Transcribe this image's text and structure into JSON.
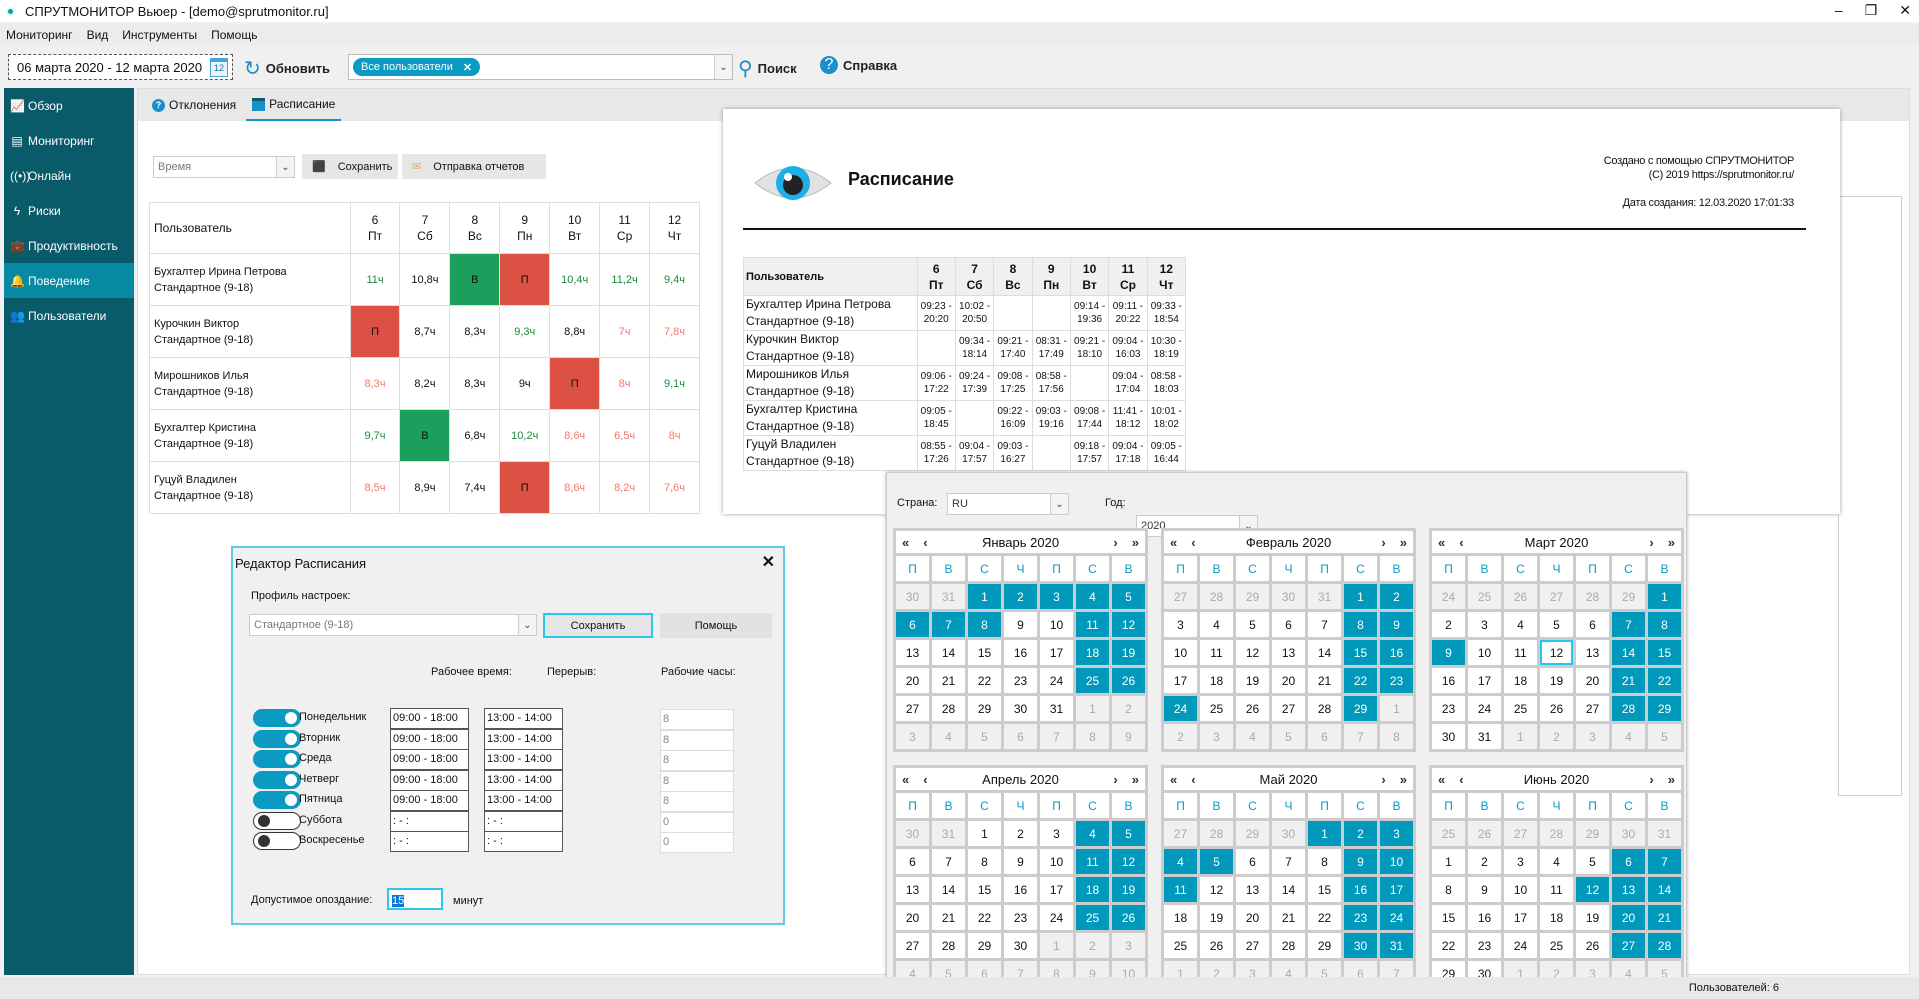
{
  "window": {
    "title": "СПРУТМОНИТОР Вьюер - [demo@sprutmonitor.ru]",
    "minimize": "–",
    "maximize": "❐",
    "close": "✕"
  },
  "menu": [
    "Мониторинг",
    "Вид",
    "Инструменты",
    "Помощь"
  ],
  "toolbar": {
    "date_range": "06 марта 2020 - 12 марта 2020",
    "calendar_icon_day": "12",
    "refresh": "Обновить",
    "user_chip": "Все пользователи",
    "chip_remove": "✕",
    "search": "Поиск",
    "help": "Справка"
  },
  "sidebar": [
    {
      "label": "Обзор",
      "icon": "📈"
    },
    {
      "label": "Мониторинг",
      "icon": "▤"
    },
    {
      "label": "Онлайн",
      "icon": "((•))"
    },
    {
      "label": "Риски",
      "icon": "ϟ"
    },
    {
      "label": "Продуктивность",
      "icon": "💼"
    },
    {
      "label": "Поведение",
      "icon": "🔔",
      "active": true
    },
    {
      "label": "Пользователи",
      "icon": "👥"
    }
  ],
  "tabs": [
    {
      "label": "Отклонения"
    },
    {
      "label": "Расписание",
      "active": true
    }
  ],
  "controls": {
    "mode_select": "Время",
    "save": "Сохранить",
    "send_reports": "Отправка отчетов"
  },
  "schedule_table": {
    "user_header": "Пользователь",
    "days": [
      {
        "d": "6",
        "w": "Пт"
      },
      {
        "d": "7",
        "w": "Сб"
      },
      {
        "d": "8",
        "w": "Вс"
      },
      {
        "d": "9",
        "w": "Пн"
      },
      {
        "d": "10",
        "w": "Вт"
      },
      {
        "d": "11",
        "w": "Ср"
      },
      {
        "d": "12",
        "w": "Чт"
      }
    ],
    "rows": [
      {
        "name": "Бухгалтер Ирина Петрова",
        "profile": "Стандартное (9-18)",
        "cells": [
          [
            "11ч",
            "g"
          ],
          [
            "10,8ч",
            "n"
          ],
          [
            "В",
            "W"
          ],
          [
            "П",
            "A"
          ],
          [
            "10,4ч",
            "g"
          ],
          [
            "11,2ч",
            "g"
          ],
          [
            "9,4ч",
            "g"
          ]
        ]
      },
      {
        "name": "Курочкин Виктор",
        "profile": "Стандартное (9-18)",
        "cells": [
          [
            "П",
            "A"
          ],
          [
            "8,7ч",
            "n"
          ],
          [
            "8,3ч",
            "n"
          ],
          [
            "9,3ч",
            "g"
          ],
          [
            "8,8ч",
            "n"
          ],
          [
            "7ч",
            "s"
          ],
          [
            "7,8ч",
            "s"
          ]
        ]
      },
      {
        "name": "Мирошников Илья",
        "profile": "Стандартное (9-18)",
        "cells": [
          [
            "8,3ч",
            "s"
          ],
          [
            "8,2ч",
            "n"
          ],
          [
            "8,3ч",
            "n"
          ],
          [
            "9ч",
            "n"
          ],
          [
            "П",
            "A"
          ],
          [
            "8ч",
            "s"
          ],
          [
            "9,1ч",
            "g"
          ]
        ]
      },
      {
        "name": "Бухгалтер Кристина",
        "profile": "Стандартное (9-18)",
        "cells": [
          [
            "9,7ч",
            "g"
          ],
          [
            "В",
            "W"
          ],
          [
            "6,8ч",
            "n"
          ],
          [
            "10,2ч",
            "g"
          ],
          [
            "8,6ч",
            "s"
          ],
          [
            "6,5ч",
            "s"
          ],
          [
            "8ч",
            "s"
          ]
        ]
      },
      {
        "name": "Гуцуй Владилен",
        "profile": "Стандартное (9-18)",
        "cells": [
          [
            "8,5ч",
            "s"
          ],
          [
            "8,9ч",
            "n"
          ],
          [
            "7,4ч",
            "n"
          ],
          [
            "П",
            "A"
          ],
          [
            "8,6ч",
            "s"
          ],
          [
            "8,2ч",
            "s"
          ],
          [
            "7,6ч",
            "s"
          ]
        ]
      }
    ]
  },
  "report": {
    "title": "Расписание",
    "created_with": "Создано с помощью СПРУТМОНИТОР",
    "copyright": "(C) 2019 https://sprutmonitor.ru/",
    "created_date": "Дата создания: 12.03.2020 17:01:33",
    "rows": [
      {
        "name": "Бухгалтер Ирина Петрова",
        "profile": "Стандартное (9-18)",
        "cells": [
          [
            "09:23 -",
            "20:20"
          ],
          [
            "10:02 -",
            "20:50"
          ],
          [
            "",
            ""
          ],
          [
            "",
            ""
          ],
          [
            "09:14 -",
            "19:36"
          ],
          [
            "09:11 -",
            "20:22"
          ],
          [
            "09:33 -",
            "18:54"
          ]
        ]
      },
      {
        "name": "Курочкин Виктор",
        "profile": "Стандартное (9-18)",
        "cells": [
          [
            "",
            ""
          ],
          [
            "09:34 -",
            "18:14"
          ],
          [
            "09:21 -",
            "17:40"
          ],
          [
            "08:31 -",
            "17:49"
          ],
          [
            "09:21 -",
            "18:10"
          ],
          [
            "09:04 -",
            "16:03"
          ],
          [
            "10:30 -",
            "18:19"
          ]
        ]
      },
      {
        "name": "Мирошников Илья",
        "profile": "Стандартное (9-18)",
        "cells": [
          [
            "09:06 -",
            "17:22"
          ],
          [
            "09:24 -",
            "17:39"
          ],
          [
            "09:08 -",
            "17:25"
          ],
          [
            "08:58 -",
            "17:56"
          ],
          [
            "",
            ""
          ],
          [
            "09:04 -",
            "17:04"
          ],
          [
            "08:58 -",
            "18:03"
          ]
        ]
      },
      {
        "name": "Бухгалтер Кристина",
        "profile": "Стандартное (9-18)",
        "cells": [
          [
            "09:05 -",
            "18:45"
          ],
          [
            "",
            ""
          ],
          [
            "09:22 -",
            "16:09"
          ],
          [
            "09:03 -",
            "19:16"
          ],
          [
            "09:08 -",
            "17:44"
          ],
          [
            "11:41 -",
            "18:12"
          ],
          [
            "10:01 -",
            "18:02"
          ]
        ]
      },
      {
        "name": "Гуцуй Владилен",
        "profile": "Стандартное (9-18)",
        "cells": [
          [
            "08:55 -",
            "17:26"
          ],
          [
            "09:04 -",
            "17:57"
          ],
          [
            "09:03 -",
            "16:27"
          ],
          [
            "",
            ""
          ],
          [
            "09:18 -",
            "17:57"
          ],
          [
            "09:04 -",
            "17:18"
          ],
          [
            "09:05 -",
            "16:44"
          ]
        ]
      }
    ]
  },
  "calendar": {
    "country_label": "Страна:",
    "country": "RU",
    "year_label": "Год:",
    "year": "2020",
    "weekdays": [
      "П",
      "В",
      "С",
      "Ч",
      "П",
      "С",
      "В"
    ],
    "months": [
      {
        "title": "Январь 2020",
        "offset": 2,
        "prev_last": 31,
        "days": 31,
        "holidays": [
          1,
          2,
          3,
          4,
          5,
          6,
          7,
          8,
          11,
          12,
          18,
          19,
          25,
          26
        ]
      },
      {
        "title": "Февраль 2020",
        "offset": 5,
        "prev_last": 31,
        "days": 29,
        "holidays": [
          1,
          2,
          8,
          9,
          15,
          16,
          22,
          23,
          24,
          29
        ]
      },
      {
        "title": "Март 2020",
        "offset": 6,
        "prev_last": 29,
        "days": 31,
        "holidays": [
          1,
          7,
          8,
          9,
          14,
          15,
          21,
          22,
          28,
          29
        ],
        "today": 12
      },
      {
        "title": "Апрель 2020",
        "offset": 2,
        "prev_last": 31,
        "days": 30,
        "holidays": [
          4,
          5,
          11,
          12,
          18,
          19,
          25,
          26
        ]
      },
      {
        "title": "Май 2020",
        "offset": 4,
        "prev_last": 30,
        "days": 31,
        "holidays": [
          1,
          2,
          3,
          4,
          5,
          9,
          10,
          11,
          16,
          17,
          23,
          24,
          30,
          31
        ]
      },
      {
        "title": "Июнь 2020",
        "offset": 7,
        "prev_last": 31,
        "days": 30,
        "holidays": [
          6,
          7,
          12,
          13,
          14,
          20,
          21,
          27,
          28
        ]
      }
    ]
  },
  "editor": {
    "title": "Редактор Расписания",
    "profile_label": "Профиль настроек:",
    "profile": "Стандартное (9-18)",
    "save": "Сохранить",
    "help": "Помощь",
    "col_work": "Рабочее время:",
    "col_break": "Перерыв:",
    "col_hours": "Рабочие часы:",
    "days": [
      {
        "name": "Понедельник",
        "on": true,
        "work": "09:00 - 18:00",
        "brk": "13:00 - 14:00",
        "hours": "8"
      },
      {
        "name": "Вторник",
        "on": true,
        "work": "09:00 - 18:00",
        "brk": "13:00 - 14:00",
        "hours": "8"
      },
      {
        "name": "Среда",
        "on": true,
        "work": "09:00 - 18:00",
        "brk": "13:00 - 14:00",
        "hours": "8"
      },
      {
        "name": "Четверг",
        "on": true,
        "work": "09:00 - 18:00",
        "brk": "13:00 - 14:00",
        "hours": "8"
      },
      {
        "name": "Пятница",
        "on": true,
        "work": "09:00 - 18:00",
        "brk": "13:00 - 14:00",
        "hours": "8"
      },
      {
        "name": "Суббота",
        "on": false,
        "work": " :  -  :",
        "brk": " :  -  :",
        "hours": "0"
      },
      {
        "name": "Воскресенье",
        "on": false,
        "work": " :  -  :",
        "brk": " :  -  :",
        "hours": "0"
      }
    ],
    "late_label": "Допустимое опоздание:",
    "late_value": "15",
    "late_unit": "минут"
  },
  "status": {
    "users": "Пользователей: 6"
  }
}
